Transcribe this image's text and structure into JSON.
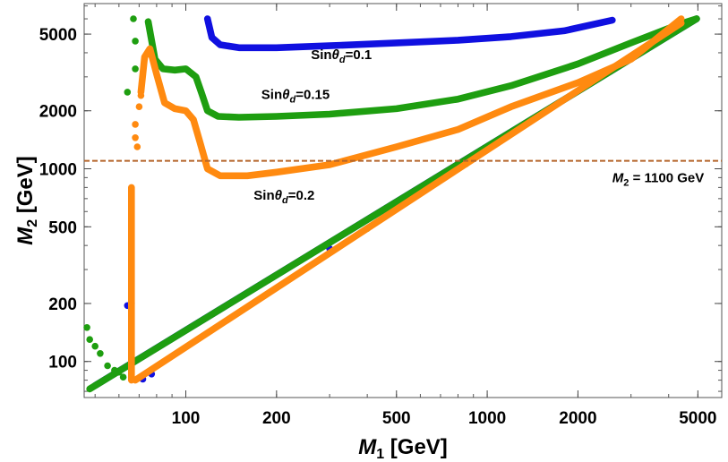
{
  "chart_data": {
    "type": "scatter",
    "title": "",
    "xlabel": {
      "main": "M",
      "sub": "1",
      "unit": " [GeV]"
    },
    "ylabel": {
      "main": "M",
      "sub": "2",
      "unit": " [GeV]"
    },
    "xscale": "log",
    "yscale": "log",
    "xlim": [
      46,
      6000
    ],
    "ylim": [
      65,
      7200
    ],
    "x_ticks": [
      {
        "value": 100,
        "label": "100"
      },
      {
        "value": 200,
        "label": "200"
      },
      {
        "value": 500,
        "label": "500"
      },
      {
        "value": 1000,
        "label": "1000"
      },
      {
        "value": 2000,
        "label": "2000"
      },
      {
        "value": 5000,
        "label": "5000"
      }
    ],
    "y_ticks": [
      {
        "value": 100,
        "label": "100"
      },
      {
        "value": 200,
        "label": "200"
      },
      {
        "value": 500,
        "label": "500"
      },
      {
        "value": 1000,
        "label": "1000"
      },
      {
        "value": 2000,
        "label": "2000"
      },
      {
        "value": 5000,
        "label": "5000"
      }
    ],
    "hline": {
      "value": 1100,
      "color": "#b5652a",
      "style": "dashed"
    },
    "colors": {
      "blue": "#1010e0",
      "green": "#1e9e10",
      "orange": "#ff8a10"
    },
    "series": [
      {
        "name": "sin_theta_d_0.1",
        "color": "#1010e0",
        "curve": [
          [
            118,
            6000
          ],
          [
            122,
            4800
          ],
          [
            130,
            4400
          ],
          [
            150,
            4250
          ],
          [
            200,
            4250
          ],
          [
            300,
            4350
          ],
          [
            500,
            4500
          ],
          [
            800,
            4650
          ],
          [
            1200,
            4850
          ],
          [
            1800,
            5200
          ],
          [
            2600,
            5900
          ]
        ],
        "diagonal": [
          [
            50,
            75
          ],
          [
            4950,
            6000
          ]
        ],
        "extra": [
          [
            64,
            195
          ],
          [
            66,
            200
          ],
          [
            72,
            81
          ],
          [
            77,
            86
          ],
          [
            300,
            385
          ],
          [
            600,
            760
          ]
        ]
      },
      {
        "name": "sin_theta_d_0.15",
        "color": "#1e9e10",
        "curve": [
          [
            75,
            5800
          ],
          [
            79,
            3700
          ],
          [
            84,
            3300
          ],
          [
            92,
            3250
          ],
          [
            100,
            3300
          ],
          [
            108,
            3000
          ],
          [
            113,
            2450
          ],
          [
            118,
            2000
          ],
          [
            128,
            1870
          ],
          [
            150,
            1850
          ],
          [
            200,
            1870
          ],
          [
            300,
            1920
          ],
          [
            500,
            2050
          ],
          [
            800,
            2300
          ],
          [
            1200,
            2700
          ],
          [
            2000,
            3500
          ],
          [
            3000,
            4500
          ],
          [
            4300,
            5600
          ],
          [
            4950,
            6000
          ]
        ],
        "diagonal": [
          [
            48,
            72
          ],
          [
            4950,
            6000
          ]
        ],
        "extra": [
          [
            47,
            150
          ],
          [
            48,
            130
          ],
          [
            50,
            120
          ],
          [
            52,
            110
          ],
          [
            55,
            95
          ],
          [
            58,
            90
          ],
          [
            60,
            88
          ],
          [
            62,
            83
          ],
          [
            64,
            2500
          ],
          [
            67,
            6000
          ],
          [
            68,
            4600
          ],
          [
            68,
            3300
          ],
          [
            400,
            490
          ],
          [
            850,
            1060
          ]
        ]
      },
      {
        "name": "sin_theta_d_0.2",
        "color": "#ff8a10",
        "curve": [
          [
            71,
            2500
          ],
          [
            73,
            3800
          ],
          [
            76,
            4200
          ],
          [
            80,
            3100
          ],
          [
            85,
            2200
          ],
          [
            92,
            2050
          ],
          [
            100,
            2000
          ],
          [
            106,
            1800
          ],
          [
            111,
            1400
          ],
          [
            118,
            1000
          ],
          [
            130,
            920
          ],
          [
            160,
            920
          ],
          [
            200,
            960
          ],
          [
            300,
            1050
          ],
          [
            500,
            1300
          ],
          [
            800,
            1600
          ],
          [
            1200,
            2100
          ],
          [
            2000,
            2800
          ],
          [
            3000,
            3700
          ],
          [
            4400,
            6000
          ]
        ],
        "diagonal": [
          [
            68,
            80
          ],
          [
            4400,
            5700
          ]
        ],
        "vertical": {
          "x": 66,
          "y_from": 80,
          "y_to": 800
        },
        "extra": [
          [
            68,
            1700
          ],
          [
            68,
            1450
          ],
          [
            69,
            1300
          ],
          [
            70,
            2100
          ],
          [
            71,
            2400
          ]
        ]
      }
    ],
    "annotations": [
      {
        "prefix": "Sin",
        "theta": "θ",
        "sub": "d",
        "value": "=0.1",
        "x": 260,
        "y": 3700
      },
      {
        "prefix": "Sin",
        "theta": "θ",
        "sub": "d",
        "value": "=0.15",
        "x": 178,
        "y": 2300
      },
      {
        "prefix": "Sin",
        "theta": "θ",
        "sub": "d",
        "value": "=0.2",
        "x": 168,
        "y": 690
      },
      {
        "main": "M",
        "sub": "2",
        "value": " = 1100 GeV",
        "x": 2600,
        "y": 850
      }
    ]
  }
}
